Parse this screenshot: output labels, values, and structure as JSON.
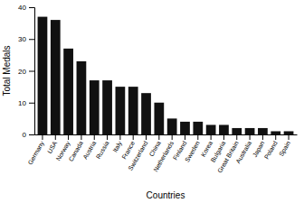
{
  "chart_data": {
    "type": "bar",
    "categories": [
      "Germany",
      "USA",
      "Norway",
      "Canada",
      "Austria",
      "Russia",
      "Italy",
      "France",
      "Switzerland",
      "China",
      "Netherlands",
      "Finland",
      "Sweden",
      "Korea",
      "Bulgaria",
      "Great Britain",
      "Australia",
      "Japan",
      "Poland",
      "Spain"
    ],
    "values": [
      37,
      36,
      27,
      23,
      17,
      17,
      15,
      15,
      13,
      10,
      5,
      4,
      4,
      3,
      3,
      2,
      2,
      2,
      1,
      1
    ],
    "color": "#111111",
    "xlabel": "Countries",
    "ylabel": "Total Medals",
    "ylim": [
      0,
      40
    ],
    "yticks": [
      0,
      10,
      20,
      30,
      40
    ],
    "grid": false
  }
}
